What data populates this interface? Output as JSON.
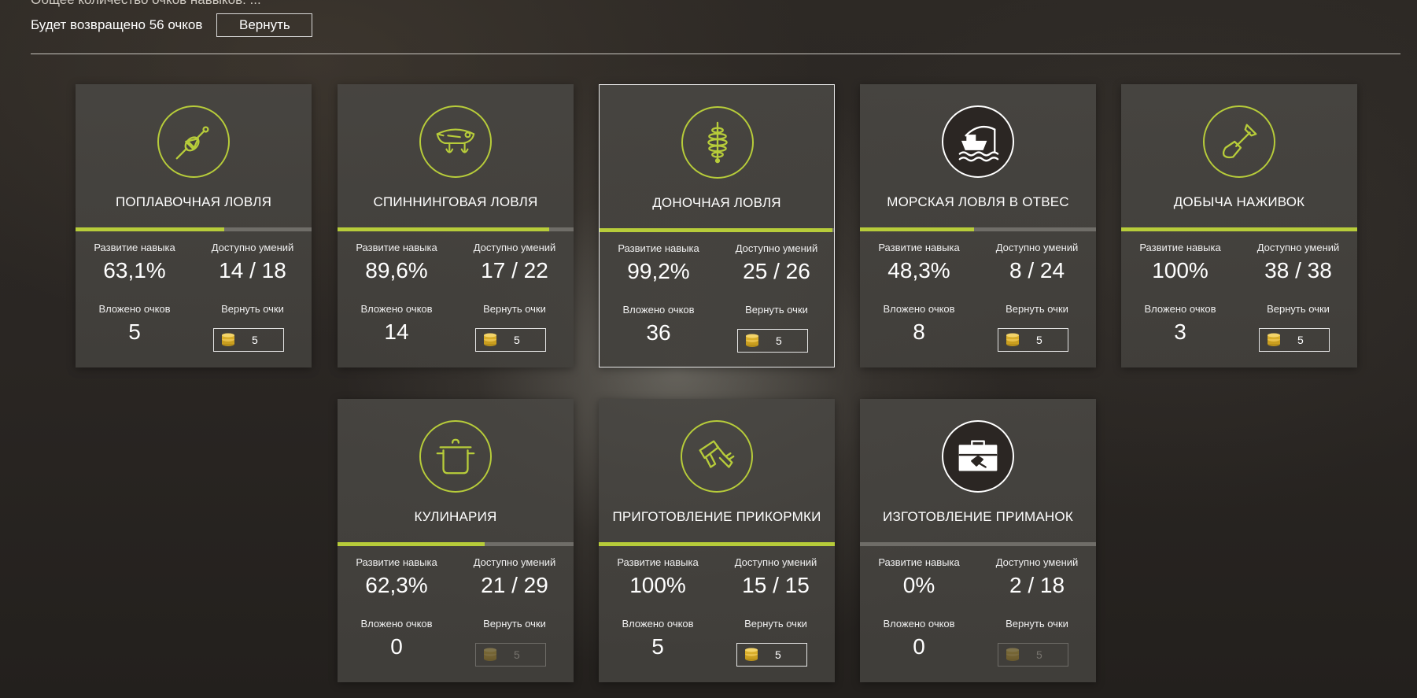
{
  "header": {
    "cut_text": "Общее количество очков навыков: ...",
    "refund_text": "Будет возвращено 56 очков",
    "refund_button": "Вернуть"
  },
  "labels": {
    "progress": "Развитие навыка",
    "available": "Доступно умений",
    "invested": "Вложено очков",
    "refund": "Вернуть очки"
  },
  "colors": {
    "accent": "#b7cc3a",
    "card": "#474541",
    "coin": "#e0b42a"
  },
  "skills": [
    {
      "title": "ПОПЛАВОЧНАЯ ЛОВЛЯ",
      "icon": "float-icon",
      "progress": "63,1%",
      "progress_value": 0.631,
      "available": "14 / 18",
      "invested": "5",
      "refund": "5",
      "refund_enabled": true,
      "selected": false
    },
    {
      "title": "СПИННИНГОВАЯ ЛОВЛЯ",
      "icon": "wobbler-lure-icon",
      "progress": "89,6%",
      "progress_value": 0.896,
      "available": "17 / 22",
      "invested": "14",
      "refund": "5",
      "refund_enabled": true,
      "selected": false
    },
    {
      "title": "ДОНОЧНАЯ ЛОВЛЯ",
      "icon": "feeder-icon",
      "progress": "99,2%",
      "progress_value": 0.992,
      "available": "25 / 26",
      "invested": "36",
      "refund": "5",
      "refund_enabled": true,
      "selected": true
    },
    {
      "title": "МОРСКАЯ ЛОВЛЯ В ОТВЕС",
      "icon": "sea-boat-icon",
      "progress": "48,3%",
      "progress_value": 0.483,
      "available": "8 / 24",
      "invested": "8",
      "refund": "5",
      "refund_enabled": true,
      "selected": false
    },
    {
      "title": "ДОБЫЧА НАЖИВОК",
      "icon": "shovel-icon",
      "progress": "100%",
      "progress_value": 1.0,
      "available": "38 / 38",
      "invested": "3",
      "refund": "5",
      "refund_enabled": true,
      "selected": false
    },
    {
      "title": "КУЛИНАРИЯ",
      "icon": "cooking-pot-icon",
      "progress": "62,3%",
      "progress_value": 0.623,
      "available": "21 / 29",
      "invested": "0",
      "refund": "5",
      "refund_enabled": false,
      "selected": false
    },
    {
      "title": "ПРИГОТОВЛЕНИЕ ПРИКОРМКИ",
      "icon": "mixer-icon",
      "progress": "100%",
      "progress_value": 1.0,
      "available": "15 / 15",
      "invested": "5",
      "refund": "5",
      "refund_enabled": true,
      "selected": false
    },
    {
      "title": "ИЗГОТОВЛЕНИЕ ПРИМАНОК",
      "icon": "toolbox-icon",
      "progress": "0%",
      "progress_value": 0.0,
      "available": "2 / 18",
      "invested": "0",
      "refund": "5",
      "refund_enabled": false,
      "selected": false
    }
  ]
}
